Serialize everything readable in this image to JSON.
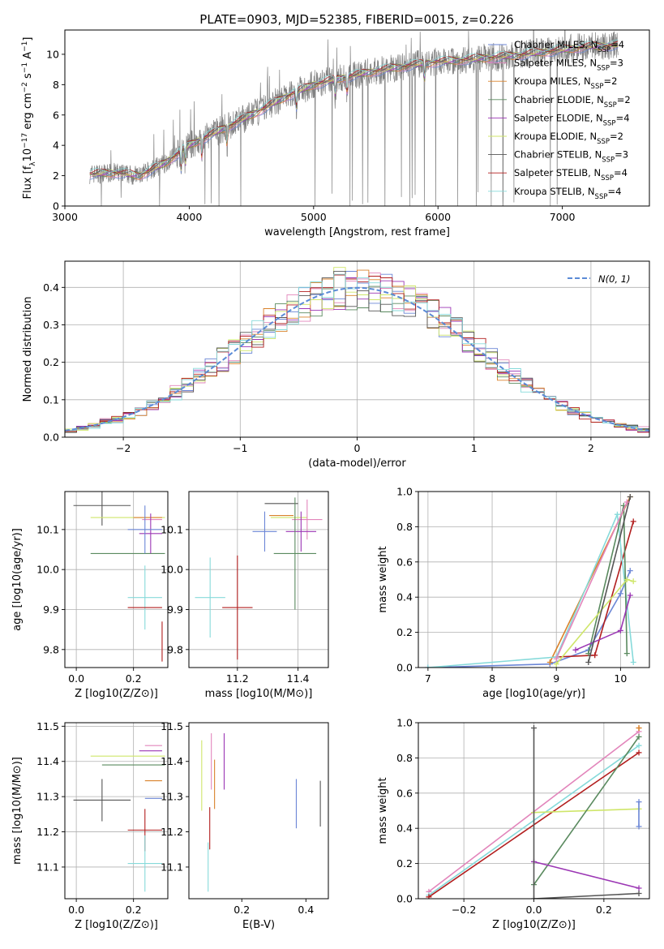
{
  "figure": {
    "title": "PLATE=0903, MJD=52385, FIBERID=0015, z=0.226"
  },
  "colors": {
    "Chabrier MILES": "#6b86d6",
    "Salpeter MILES": "#e285bb",
    "Kroupa MILES": "#d9822b",
    "Chabrier ELODIE": "#5a8a5f",
    "Salpeter ELODIE": "#9b36b4",
    "Kroupa ELODIE": "#cfe66a",
    "Chabrier STELIB": "#555555",
    "Salpeter STELIB": "#b21e1e",
    "Kroupa STELIB": "#86dada",
    "data": "#808080",
    "gauss": "#5b8bd6"
  },
  "chart_data": [
    {
      "id": "spectrum",
      "type": "line",
      "title": "PLATE=0903, MJD=52385, FIBERID=0015, z=0.226",
      "xlabel": "wavelength [Angstrom, rest frame]",
      "ylabel": "Flux [f_λ 10^-17 erg cm^-2 s^-1 A^-1]",
      "xlim": [
        3000,
        7700
      ],
      "ylim": [
        0,
        11.6
      ],
      "xticks": [
        3000,
        4000,
        5000,
        6000,
        7000
      ],
      "yticks": [
        0,
        2,
        4,
        6,
        8,
        10
      ],
      "grid": false,
      "legend_position": "top-right",
      "continuum": {
        "x": [
          3200,
          3400,
          3600,
          3800,
          3900,
          4000,
          4200,
          4500,
          4800,
          5000,
          5200,
          5500,
          5800,
          6000,
          6300,
          6600,
          6900,
          7200,
          7450
        ],
        "y": [
          2.1,
          2.2,
          2.0,
          2.8,
          3.4,
          4.0,
          4.8,
          6.0,
          7.3,
          8.0,
          8.4,
          8.9,
          9.3,
          9.5,
          9.7,
          9.9,
          10.2,
          10.5,
          10.6
        ]
      },
      "legend": [
        {
          "label": "Chabrier MILES, N",
          "nssp": 4
        },
        {
          "label": "Salpeter MILES, N",
          "nssp": 3
        },
        {
          "label": "Kroupa MILES, N",
          "nssp": 2
        },
        {
          "label": "Chabrier ELODIE, N",
          "nssp": 2
        },
        {
          "label": "Salpeter ELODIE, N",
          "nssp": 4
        },
        {
          "label": "Kroupa ELODIE, N",
          "nssp": 2
        },
        {
          "label": "Chabrier STELIB, N",
          "nssp": 3
        },
        {
          "label": "Salpeter STELIB, N",
          "nssp": 4
        },
        {
          "label": "Kroupa STELIB, N",
          "nssp": 4
        }
      ],
      "legend_subscript": "SSP"
    },
    {
      "id": "residuals",
      "type": "line",
      "xlabel": "(data-model)/error",
      "ylabel": "Normed distribution",
      "xlim": [
        -2.5,
        2.5
      ],
      "ylim": [
        0,
        0.47
      ],
      "xticks": [
        -2,
        -1,
        0,
        1,
        2
      ],
      "yticks": [
        0.0,
        0.1,
        0.2,
        0.3,
        0.4
      ],
      "grid": true,
      "legend_position": "top-right",
      "gauss_label": "N(0, 1)",
      "bin_width": 0.1,
      "bin_start": -2.5
    },
    {
      "id": "age-Z",
      "type": "scatter",
      "xlabel": "Z [log10(Z/Z⊙)]",
      "ylabel": "age [log10(age/yr)]",
      "xlim": [
        -0.04,
        0.32
      ],
      "ylim": [
        9.755,
        10.195
      ],
      "xticks": [
        0.0,
        0.2
      ],
      "yticks": [
        9.8,
        9.9,
        10.0,
        10.1
      ],
      "grid": true,
      "points": [
        {
          "model": "Chabrier STELIB",
          "x": 0.09,
          "xerr": 0.1,
          "y": 10.16,
          "yerr": 0.05
        },
        {
          "model": "Kroupa ELODIE",
          "x": 0.18,
          "xerr": 0.13,
          "y": 10.13,
          "yerr": 0.0
        },
        {
          "model": "Chabrier ELODIE",
          "x": 0.18,
          "xerr": 0.13,
          "y": 10.04,
          "yerr": 0.0
        },
        {
          "model": "Kroupa MILES",
          "x": 0.25,
          "xerr": 0.05,
          "y": 10.13,
          "yerr": 0.0
        },
        {
          "model": "Salpeter MILES",
          "x": 0.265,
          "xerr": 0.035,
          "y": 10.125,
          "yerr": 0.0
        },
        {
          "model": "Salpeter ELODIE",
          "x": 0.26,
          "xerr": 0.04,
          "y": 10.09,
          "yerr": 0.05
        },
        {
          "model": "Chabrier MILES",
          "x": 0.24,
          "xerr": 0.06,
          "y": 10.1,
          "yerr": 0.06
        },
        {
          "model": "Kroupa STELIB",
          "x": 0.24,
          "xerr": 0.06,
          "y": 9.93,
          "yerr": 0.08
        },
        {
          "model": "Salpeter STELIB",
          "x": 0.24,
          "xerr": 0.06,
          "y": 9.905,
          "yerr": 0.0
        },
        {
          "model": "Salpeter STELIB",
          "x": 0.3,
          "xerr": 0.0,
          "y": 9.82,
          "yerr": 0.05
        }
      ]
    },
    {
      "id": "age-mass",
      "type": "scatter",
      "xlabel": "mass [log10(M/M⊙)]",
      "ylabel": "",
      "xlim": [
        11.04,
        11.5
      ],
      "ylim": [
        9.755,
        10.195
      ],
      "xticks": [
        11.2,
        11.4
      ],
      "yticks": [
        9.8,
        9.9,
        10.0,
        10.1
      ],
      "grid": true,
      "points": [
        {
          "model": "Chabrier STELIB",
          "x": 11.345,
          "xerr": 0.055,
          "y": 10.165,
          "yerr": 0.0
        },
        {
          "model": "Kroupa ELODIE",
          "x": 11.37,
          "xerr": 0.06,
          "y": 10.13,
          "yerr": 0.0
        },
        {
          "model": "Kroupa MILES",
          "x": 11.345,
          "xerr": 0.04,
          "y": 10.135,
          "yerr": 0.0
        },
        {
          "model": "Salpeter MILES",
          "x": 11.43,
          "xerr": 0.05,
          "y": 10.125,
          "yerr": 0.05
        },
        {
          "model": "Chabrier MILES",
          "x": 11.29,
          "xerr": 0.04,
          "y": 10.095,
          "yerr": 0.05
        },
        {
          "model": "Salpeter ELODIE",
          "x": 11.41,
          "xerr": 0.05,
          "y": 10.095,
          "yerr": 0.05
        },
        {
          "model": "Chabrier ELODIE",
          "x": 11.39,
          "xerr": 0.07,
          "y": 10.04,
          "yerr": 0.14
        },
        {
          "model": "Kroupa STELIB",
          "x": 11.11,
          "xerr": 0.05,
          "y": 9.93,
          "yerr": 0.1
        },
        {
          "model": "Salpeter STELIB",
          "x": 11.2,
          "xerr": 0.05,
          "y": 9.905,
          "yerr": 0.13
        }
      ]
    },
    {
      "id": "weight-age",
      "type": "line",
      "xlabel": "age [log10(age/yr)]",
      "ylabel": "mass weight",
      "xlim": [
        6.85,
        10.45
      ],
      "ylim": [
        0,
        1.0
      ],
      "xticks": [
        7,
        8,
        9,
        10
      ],
      "yticks": [
        0.0,
        0.2,
        0.4,
        0.6,
        0.8,
        1.0
      ],
      "grid": true,
      "series": [
        {
          "model": "Chabrier MILES",
          "x": [
            7.0,
            8.9,
            9.5,
            10.0,
            10.15
          ],
          "y": [
            0.0,
            0.02,
            0.1,
            0.42,
            0.55
          ]
        },
        {
          "model": "Kroupa MILES",
          "x": [
            8.9,
            10.15
          ],
          "y": [
            0.03,
            0.97
          ]
        },
        {
          "model": "Salpeter STELIB",
          "x": [
            9.0,
            9.6,
            10.2
          ],
          "y": [
            0.06,
            0.07,
            0.83
          ]
        },
        {
          "model": "Kroupa STELIB",
          "x": [
            7.0,
            9.0,
            9.95,
            10.2
          ],
          "y": [
            0.0,
            0.06,
            0.87,
            0.03
          ]
        },
        {
          "model": "Chabrier ELODIE",
          "x": [
            9.5,
            10.05,
            10.1
          ],
          "y": [
            0.08,
            0.92,
            0.08
          ]
        },
        {
          "model": "Salpeter ELODIE",
          "x": [
            9.3,
            10.0,
            10.15
          ],
          "y": [
            0.1,
            0.21,
            0.41
          ]
        },
        {
          "model": "Kroupa ELODIE",
          "x": [
            9.0,
            10.1,
            10.2
          ],
          "y": [
            0.02,
            0.5,
            0.49
          ]
        },
        {
          "model": "Chabrier STELIB",
          "x": [
            9.5,
            10.15
          ],
          "y": [
            0.03,
            0.97
          ]
        },
        {
          "model": "Salpeter MILES",
          "x": [
            9.0,
            10.1
          ],
          "y": [
            0.05,
            0.94
          ]
        }
      ]
    },
    {
      "id": "mass-Z",
      "type": "scatter",
      "xlabel": "Z [log10(Z/Z⊙)]",
      "ylabel": "mass [log10(M/M⊙)]",
      "xlim": [
        -0.04,
        0.32
      ],
      "ylim": [
        11.01,
        11.51
      ],
      "xticks": [
        0.0,
        0.2
      ],
      "yticks": [
        11.1,
        11.2,
        11.3,
        11.4,
        11.5
      ],
      "grid": true,
      "points": [
        {
          "model": "Chabrier STELIB",
          "x": 0.09,
          "xerr": 0.1,
          "y": 11.29,
          "yerr": 0.06
        },
        {
          "model": "Kroupa ELODIE",
          "x": 0.18,
          "xerr": 0.13,
          "y": 11.415,
          "yerr": 0.0
        },
        {
          "model": "Chabrier ELODIE",
          "x": 0.2,
          "xerr": 0.11,
          "y": 11.39,
          "yerr": 0.0
        },
        {
          "model": "Salpeter MILES",
          "x": 0.27,
          "xerr": 0.03,
          "y": 11.445,
          "yerr": 0.0
        },
        {
          "model": "Salpeter ELODIE",
          "x": 0.26,
          "xerr": 0.04,
          "y": 11.43,
          "yerr": 0.0
        },
        {
          "model": "Kroupa MILES",
          "x": 0.27,
          "xerr": 0.03,
          "y": 11.345,
          "yerr": 0.0
        },
        {
          "model": "Chabrier MILES",
          "x": 0.27,
          "xerr": 0.03,
          "y": 11.295,
          "yerr": 0.0
        },
        {
          "model": "Salpeter STELIB",
          "x": 0.24,
          "xerr": 0.06,
          "y": 11.205,
          "yerr": 0.06
        },
        {
          "model": "Kroupa STELIB",
          "x": 0.24,
          "xerr": 0.06,
          "y": 11.11,
          "yerr": 0.08
        }
      ]
    },
    {
      "id": "mass-EBV",
      "type": "scatter",
      "xlabel": "E(B-V)",
      "ylabel": "",
      "xlim": [
        0.035,
        0.47
      ],
      "ylim": [
        11.01,
        11.51
      ],
      "xticks": [
        0.2,
        0.4
      ],
      "yticks": [
        11.1,
        11.2,
        11.3,
        11.4,
        11.5
      ],
      "grid": false,
      "points": [
        {
          "model": "Kroupa ELODIE",
          "x": 0.075,
          "xerr": 0.0,
          "y": 11.36,
          "yerr": 0.1
        },
        {
          "model": "Salpeter MILES",
          "x": 0.105,
          "xerr": 0.0,
          "y": 11.4,
          "yerr": 0.08
        },
        {
          "model": "Kroupa MILES",
          "x": 0.115,
          "xerr": 0.0,
          "y": 11.335,
          "yerr": 0.07
        },
        {
          "model": "Salpeter ELODIE",
          "x": 0.145,
          "xerr": 0.0,
          "y": 11.4,
          "yerr": 0.08
        },
        {
          "model": "Salpeter STELIB",
          "x": 0.1,
          "xerr": 0.0,
          "y": 11.21,
          "yerr": 0.06
        },
        {
          "model": "Kroupa STELIB",
          "x": 0.095,
          "xerr": 0.0,
          "y": 11.1,
          "yerr": 0.07
        },
        {
          "model": "Chabrier MILES",
          "x": 0.37,
          "xerr": 0.0,
          "y": 11.28,
          "yerr": 0.07
        },
        {
          "model": "Chabrier STELIB",
          "x": 0.445,
          "xerr": 0.0,
          "y": 11.28,
          "yerr": 0.065
        }
      ]
    },
    {
      "id": "weight-Z",
      "type": "line",
      "xlabel": "Z [log10(Z/Z⊙)]",
      "ylabel": "mass weight",
      "xlim": [
        -0.33,
        0.33
      ],
      "ylim": [
        0,
        1.0
      ],
      "xticks": [
        -0.2,
        0.0,
        0.2
      ],
      "yticks": [
        0.0,
        0.2,
        0.4,
        0.6,
        0.8,
        1.0
      ],
      "grid": true,
      "series": [
        {
          "model": "Salpeter MILES",
          "x": [
            -0.3,
            0.3
          ],
          "y": [
            0.04,
            0.95
          ]
        },
        {
          "model": "Kroupa STELIB",
          "x": [
            -0.3,
            0.3
          ],
          "y": [
            0.02,
            0.87
          ]
        },
        {
          "model": "Salpeter STELIB",
          "x": [
            -0.3,
            0.3
          ],
          "y": [
            0.01,
            0.83
          ]
        },
        {
          "model": "Kroupa ELODIE",
          "x": [
            0.0,
            0.3
          ],
          "y": [
            0.49,
            0.51
          ]
        },
        {
          "model": "Chabrier ELODIE",
          "x": [
            0.0,
            0.3
          ],
          "y": [
            0.08,
            0.92
          ]
        },
        {
          "model": "Salpeter ELODIE",
          "x": [
            0.0,
            0.3
          ],
          "y": [
            0.21,
            0.06
          ]
        },
        {
          "model": "Chabrier STELIB",
          "x": [
            0.0,
            0.0,
            0.3
          ],
          "y": [
            0.97,
            0.0,
            0.03
          ]
        },
        {
          "model": "Chabrier MILES",
          "x": [
            0.3,
            0.3
          ],
          "y": [
            0.41,
            0.55
          ]
        },
        {
          "model": "Kroupa MILES",
          "x": [
            0.3,
            0.3
          ],
          "y": [
            0.97,
            0.97
          ]
        }
      ]
    }
  ]
}
